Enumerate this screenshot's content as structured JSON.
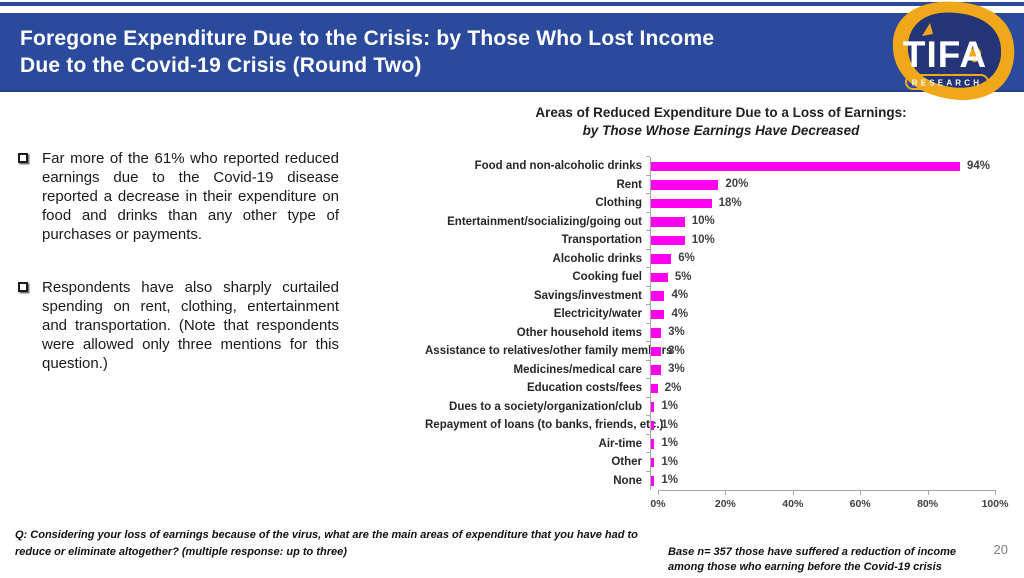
{
  "header": {
    "title_line1": "Foregone Expenditure Due to the Crisis: by Those Who Lost Income",
    "title_line2": "Due to the Covid-19 Crisis (Round Two)"
  },
  "logo": {
    "brand": "TIFA",
    "tagline": "RESEARCH"
  },
  "left_panel": {
    "bullets": [
      "Far more of the 61% who reported reduced earnings due to the Covid-19 disease reported a decrease in their expenditure on food and drinks than any other type of purchases or payments.",
      "Respondents have also sharply curtailed spending on rent, clothing, entertainment and transportation. (Note that respondents were allowed only three mentions for this question.)"
    ]
  },
  "chart_data": {
    "type": "bar",
    "orientation": "horizontal",
    "title": "Areas of Reduced Expenditure Due to a Loss of Earnings:",
    "subtitle": "by Those Whose Earnings Have Decreased",
    "categories": [
      "Food and non-alcoholic drinks",
      "Rent",
      "Clothing",
      "Entertainment/socializing/going out",
      "Transportation",
      "Alcoholic drinks",
      "Cooking fuel",
      "Savings/investment",
      "Electricity/water",
      "Other household items",
      "Assistance to relatives/other family members",
      "Medicines/medical care",
      "Education costs/fees",
      "Dues to a society/organization/club",
      "Repayment of loans (to banks, friends, etc.)",
      "Air-time",
      "Other",
      "None"
    ],
    "values": [
      94,
      20,
      18,
      10,
      10,
      6,
      5,
      4,
      4,
      3,
      3,
      3,
      2,
      1,
      1,
      1,
      1,
      1
    ],
    "value_labels": [
      "94%",
      "20%",
      "18%",
      "10%",
      "10%",
      "6%",
      "5%",
      "4%",
      "4%",
      "3%",
      "3%",
      "3%",
      "2%",
      "1%",
      "1%",
      "1%",
      "1%",
      "1%"
    ],
    "xlim": [
      0,
      100
    ],
    "x_ticks": [
      0,
      20,
      40,
      60,
      80,
      100
    ],
    "x_tick_labels": [
      "0%",
      "20%",
      "40%",
      "60%",
      "80%",
      "100%"
    ],
    "grid": false,
    "legend": false,
    "bar_color": "#FF00F0"
  },
  "footer": {
    "question": "Q: Considering your loss of earnings because of the virus, what are the main areas of expenditure  that you have had to reduce or eliminate altogether? (multiple response: up to three)",
    "base_note": "Base n= 357  those have suffered a reduction of income among those who earning before the Covid-19 crisis",
    "page_number": "20"
  },
  "colors": {
    "header_blue": "#2B4A9C",
    "logo_yellow": "#F0A719",
    "logo_navy": "#233577",
    "bar_magenta": "#FF00F0",
    "axis_gray": "#A6A6A6",
    "page_number_gray": "#7F7F7F"
  }
}
